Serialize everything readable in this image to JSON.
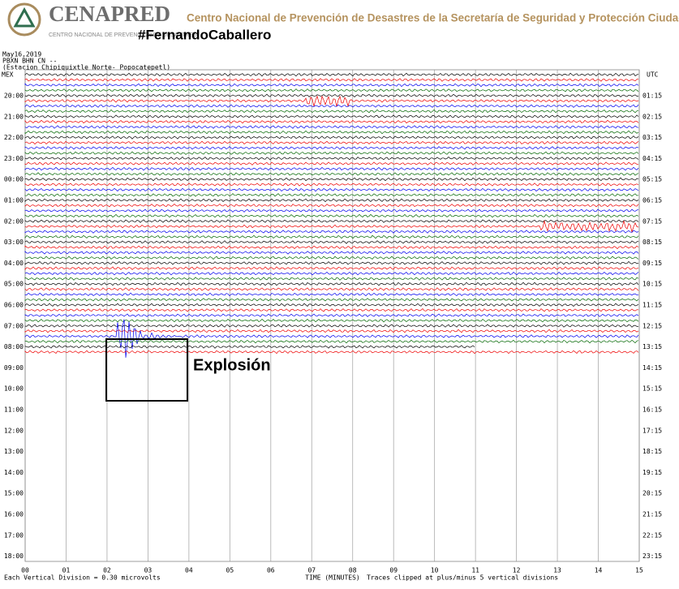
{
  "header": {
    "brand": "CENAPRED",
    "brand_sub": "CENTRO NACIONAL DE PREVENCIÓN DE DESASTRES",
    "agency": "Centro Nacional de Prevención de Desastres de la Secretaría de Seguridad y Protección Ciudadana",
    "hashtag": "#FernandoCaballero"
  },
  "seismogram": {
    "date": "May16,2019",
    "channel": "PBXN BHN CN --",
    "station": "(Estacion Chipiquixtle Norte- Popocatepetl)",
    "left_zone": "MEX",
    "right_zone": "UTC",
    "left_labels": [
      "20:00",
      "21:00",
      "22:00",
      "23:00",
      "00:00",
      "01:00",
      "02:00",
      "03:00",
      "04:00",
      "05:00",
      "06:00",
      "07:00",
      "08:00",
      "09:00",
      "10:00",
      "11:00",
      "12:00",
      "13:00",
      "14:00",
      "15:00",
      "16:00",
      "17:00",
      "18:00"
    ],
    "right_labels": [
      "01:15",
      "02:15",
      "03:15",
      "04:15",
      "05:15",
      "06:15",
      "07:15",
      "08:15",
      "09:15",
      "10:15",
      "11:15",
      "12:15",
      "13:15",
      "14:15",
      "15:15",
      "16:15",
      "17:15",
      "18:15",
      "19:15",
      "20:15",
      "21:15",
      "22:15",
      "23:15"
    ],
    "x_labels": [
      "00",
      "01",
      "02",
      "03",
      "04",
      "05",
      "06",
      "07",
      "08",
      "09",
      "10",
      "11",
      "12",
      "13",
      "14",
      "15"
    ],
    "footer_left": "Each Vertical Division = 0.30 microvolts",
    "x_title": "TIME (MINUTES)",
    "footer_right": "Traces clipped at plus/minus 5 vertical divisions"
  },
  "annotation": "Explosión"
}
